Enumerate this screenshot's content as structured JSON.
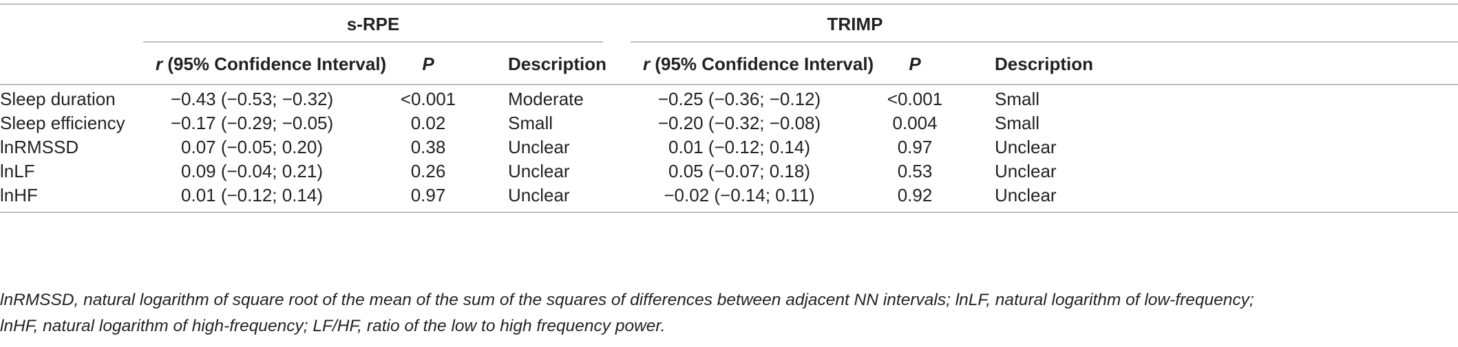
{
  "table": {
    "groups": [
      "s-RPE",
      "TRIMP"
    ],
    "columns": {
      "r_prefix": "r",
      "r_rest": " (95% Confidence Interval)",
      "p": "P",
      "description": "Description"
    },
    "rows": [
      {
        "label": "Sleep duration",
        "srpe_r": "−0.43 (−0.53; −0.32)",
        "srpe_p": "<0.001",
        "srpe_desc": "Moderate",
        "trimp_r": "−0.25 (−0.36; −0.12)",
        "trimp_p": "<0.001",
        "trimp_desc": "Small"
      },
      {
        "label": "Sleep efficiency",
        "srpe_r": "−0.17 (−0.29; −0.05)",
        "srpe_p": "0.02",
        "srpe_desc": "Small",
        "trimp_r": "−0.20 (−0.32; −0.08)",
        "trimp_p": "0.004",
        "trimp_desc": "Small"
      },
      {
        "label": "lnRMSSD",
        "srpe_r": "0.07 (−0.05; 0.20)",
        "srpe_p": "0.38",
        "srpe_desc": "Unclear",
        "trimp_r": "0.01 (−0.12; 0.14)",
        "trimp_p": "0.97",
        "trimp_desc": "Unclear"
      },
      {
        "label": "lnLF",
        "srpe_r": "0.09 (−0.04; 0.21)",
        "srpe_p": "0.26",
        "srpe_desc": "Unclear",
        "trimp_r": "0.05 (−0.07; 0.18)",
        "trimp_p": "0.53",
        "trimp_desc": "Unclear"
      },
      {
        "label": "lnHF",
        "srpe_r": "0.01 (−0.12; 0.14)",
        "srpe_p": "0.97",
        "srpe_desc": "Unclear",
        "trimp_r": "−0.02 (−0.14; 0.11)",
        "trimp_p": "0.92",
        "trimp_desc": "Unclear"
      }
    ]
  },
  "footnote": {
    "line1": "lnRMSSD, natural logarithm of square root of the mean of the sum of the squares of differences between adjacent NN intervals; lnLF, natural logarithm of low-frequency;",
    "line2": "lnHF, natural logarithm of high-frequency; LF/HF, ratio of the low to high frequency power."
  }
}
